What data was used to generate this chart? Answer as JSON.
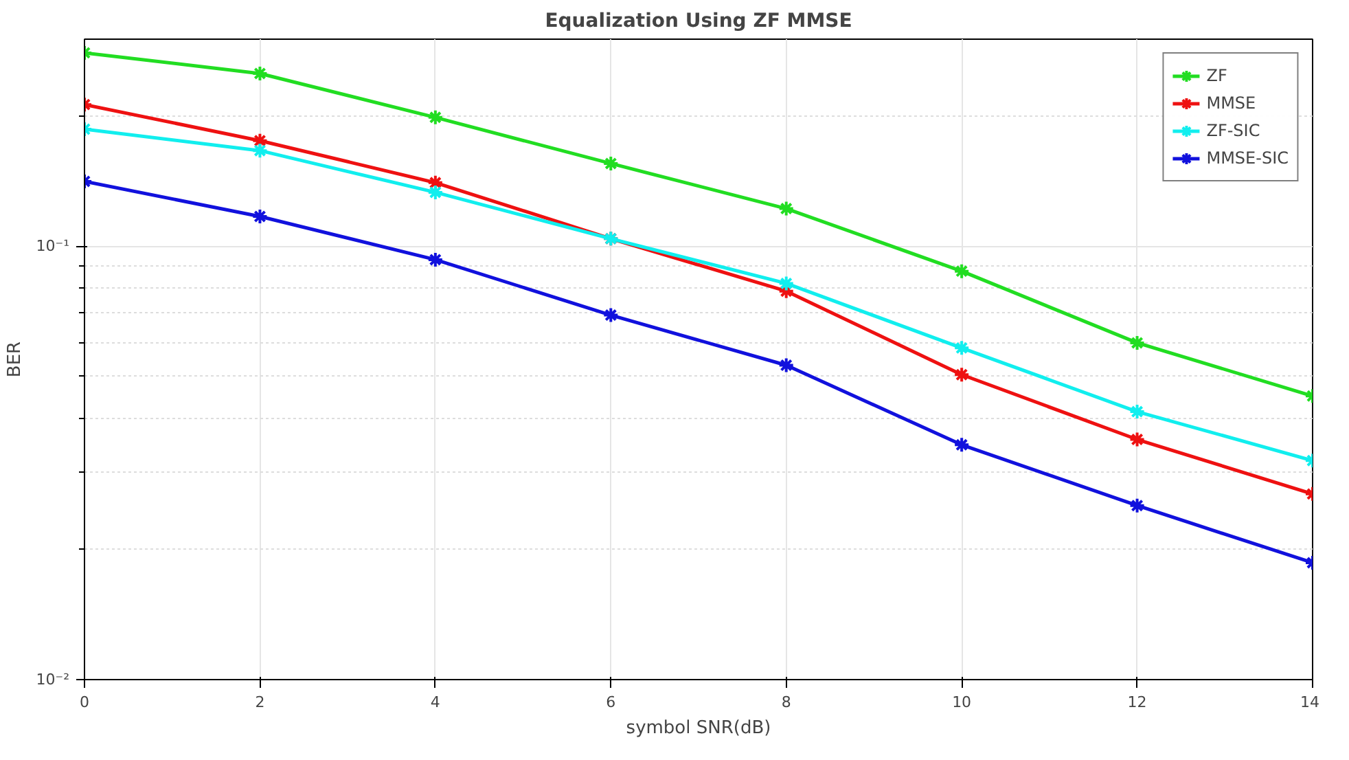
{
  "chart_data": {
    "type": "line",
    "title": "Equalization Using ZF MMSE",
    "xlabel": "symbol SNR(dB)",
    "ylabel": "BER",
    "x": [
      0,
      2,
      4,
      6,
      8,
      10,
      12,
      14
    ],
    "series": [
      {
        "name": "ZF",
        "color": "#22dd22",
        "values": [
          0.279,
          0.25,
          0.198,
          0.155,
          0.122,
          0.0875,
          0.0598,
          0.0451
        ]
      },
      {
        "name": "MMSE",
        "color": "#ee1111",
        "values": [
          0.212,
          0.175,
          0.14,
          0.104,
          0.0787,
          0.0505,
          0.0358,
          0.0268
        ]
      },
      {
        "name": "ZF-SIC",
        "color": "#11eeee",
        "values": [
          0.186,
          0.166,
          0.133,
          0.104,
          0.082,
          0.0582,
          0.0415,
          0.032
        ]
      },
      {
        "name": "MMSE-SIC",
        "color": "#1111dd",
        "values": [
          0.141,
          0.117,
          0.093,
          0.0693,
          0.0531,
          0.0348,
          0.0252,
          0.0186
        ]
      }
    ],
    "log": "y",
    "xlim": [
      0,
      14
    ],
    "ylim": [
      0.01,
      0.3
    ],
    "xticks": [
      0,
      2,
      4,
      6,
      8,
      10,
      12,
      14
    ],
    "yticks": [
      {
        "value": 0.01,
        "label": "10⁻²"
      },
      {
        "value": 0.1,
        "label": "10⁻¹"
      }
    ],
    "grid": true,
    "legend": "top right",
    "marker": "cross",
    "line_style": "solid"
  }
}
